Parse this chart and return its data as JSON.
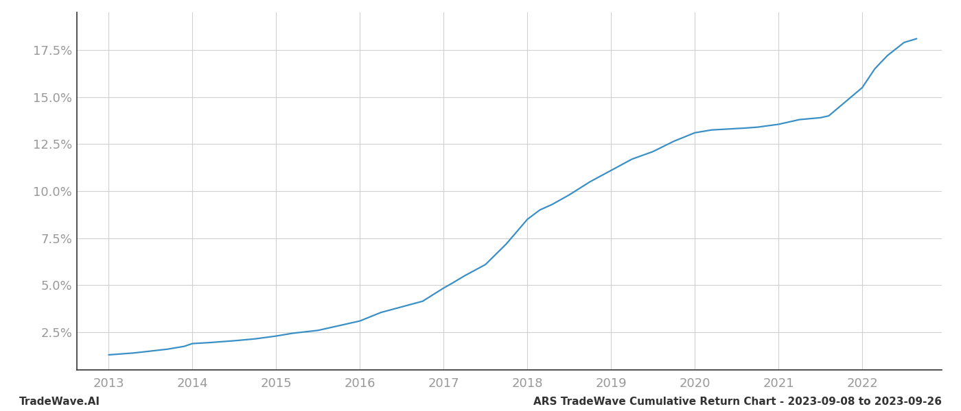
{
  "x_years": [
    2013.0,
    2013.15,
    2013.3,
    2013.5,
    2013.7,
    2013.9,
    2014.0,
    2014.2,
    2014.5,
    2014.75,
    2015.0,
    2015.2,
    2015.5,
    2015.75,
    2016.0,
    2016.25,
    2016.5,
    2016.75,
    2017.0,
    2017.1,
    2017.25,
    2017.5,
    2017.75,
    2018.0,
    2018.15,
    2018.3,
    2018.5,
    2018.75,
    2019.0,
    2019.25,
    2019.5,
    2019.75,
    2020.0,
    2020.2,
    2020.4,
    2020.6,
    2020.75,
    2021.0,
    2021.25,
    2021.5,
    2021.6,
    2022.0,
    2022.15,
    2022.3,
    2022.5,
    2022.65
  ],
  "y_values": [
    1.3,
    1.35,
    1.4,
    1.5,
    1.6,
    1.75,
    1.9,
    1.95,
    2.05,
    2.15,
    2.3,
    2.45,
    2.6,
    2.85,
    3.1,
    3.55,
    3.85,
    4.15,
    4.85,
    5.1,
    5.5,
    6.1,
    7.2,
    8.5,
    9.0,
    9.3,
    9.8,
    10.5,
    11.1,
    11.7,
    12.1,
    12.65,
    13.1,
    13.25,
    13.3,
    13.35,
    13.4,
    13.55,
    13.8,
    13.9,
    14.0,
    15.5,
    16.5,
    17.2,
    17.9,
    18.1
  ],
  "line_color": "#3a8fc7",
  "line_width": 1.6,
  "background_color": "#ffffff",
  "grid_color": "#d0d0d0",
  "tick_color": "#999999",
  "yticks": [
    2.5,
    5.0,
    7.5,
    10.0,
    12.5,
    15.0,
    17.5
  ],
  "xticks": [
    2013,
    2014,
    2015,
    2016,
    2017,
    2018,
    2019,
    2020,
    2021,
    2022
  ],
  "ylim": [
    0.5,
    19.5
  ],
  "xlim": [
    2012.62,
    2022.95
  ],
  "footer_left": "TradeWave.AI",
  "footer_right": "ARS TradeWave Cumulative Return Chart - 2023-09-08 to 2023-09-26",
  "footer_fontsize": 11,
  "tick_fontsize": 13,
  "spine_color": "#999999"
}
